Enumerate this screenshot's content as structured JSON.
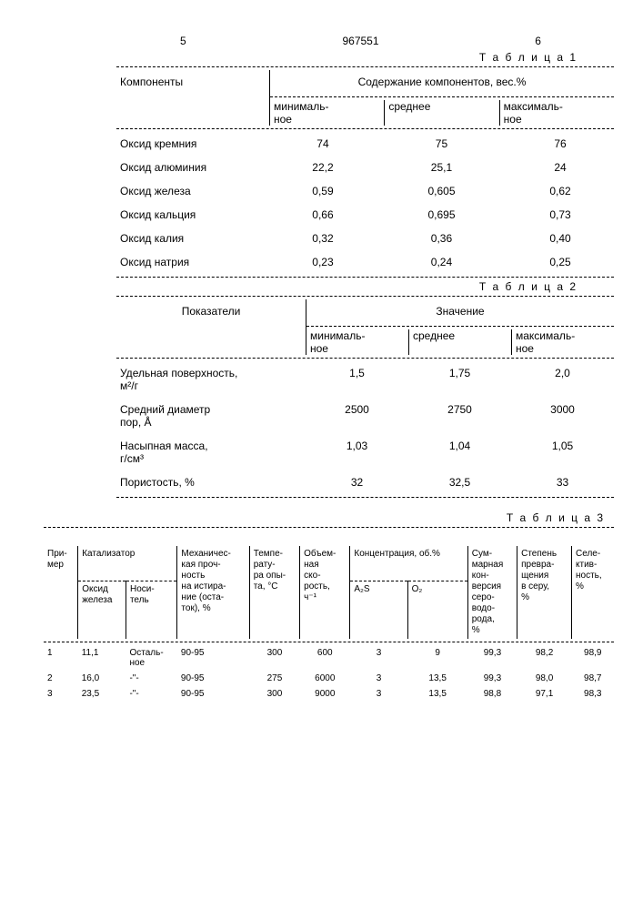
{
  "header": {
    "page_left": "5",
    "doc_number": "967551",
    "page_right": "6"
  },
  "table1": {
    "caption": "Т а б л и ц а  1",
    "col_header_left": "Компоненты",
    "col_header_right": "Содержание компонентов, вес.%",
    "sub_headers": [
      "минималь-\nное",
      "среднее",
      "максималь-\nное"
    ],
    "rows": [
      {
        "label": "Оксид кремния",
        "min": "74",
        "avg": "75",
        "max": "76"
      },
      {
        "label": "Оксид алюминия",
        "min": "22,2",
        "avg": "25,1",
        "max": "24"
      },
      {
        "label": "Оксид железа",
        "min": "0,59",
        "avg": "0,605",
        "max": "0,62"
      },
      {
        "label": "Оксид кальция",
        "min": "0,66",
        "avg": "0,695",
        "max": "0,73"
      },
      {
        "label": "Оксид калия",
        "min": "0,32",
        "avg": "0,36",
        "max": "0,40"
      },
      {
        "label": "Оксид натрия",
        "min": "0,23",
        "avg": "0,24",
        "max": "0,25"
      }
    ]
  },
  "table2": {
    "caption": "Т а б л и ц а  2",
    "col_header_left": "Показатели",
    "col_header_right": "Значение",
    "sub_headers": [
      "минималь-\nное",
      "среднее",
      "максималь-\nное"
    ],
    "rows": [
      {
        "label": "Удельная поверхность,\nм²/г",
        "min": "1,5",
        "avg": "1,75",
        "max": "2,0"
      },
      {
        "label": "Средний диаметр\nпор, Å",
        "min": "2500",
        "avg": "2750",
        "max": "3000"
      },
      {
        "label": "Насыпная масса,\nг/см³",
        "min": "1,03",
        "avg": "1,04",
        "max": "1,05"
      },
      {
        "label": "Пористость, %",
        "min": "32",
        "avg": "32,5",
        "max": "33"
      }
    ]
  },
  "table3": {
    "caption": "Т а б л и ц а  3",
    "headers": {
      "c1": "При-\nмер",
      "c2": "Катализатор",
      "c2a": "Оксид\nжелеза",
      "c2b": "Носи-\nтель",
      "c3": "Механичес-\nкая проч-\nность\nна истира-\nние (оста-\nток), %",
      "c4": "Темпе-\nрату-\nра опы-\nта, °С",
      "c5": "Объем-\nная\nско-\nрость,\nч⁻¹",
      "c6": "Концентрация,\nоб.%",
      "c6a": "A₂S",
      "c6b": "O₂",
      "c7": "Сум-\nмарная\nкон-\nверсия\nсеро-\nводо-\nрода,\n%",
      "c8": "Степень\nпревра-\nщения\nв серу,\n%",
      "c9": "Селе-\nктив-\nность,\n%"
    },
    "rows": [
      {
        "n": "1",
        "feox": "11,1",
        "carrier": "Осталь-\nное",
        "mech": "90-95",
        "temp": "300",
        "vol": "600",
        "a2s": "3",
        "o2": "9",
        "conv": "99,3",
        "deg": "98,2",
        "sel": "98,9"
      },
      {
        "n": "2",
        "feox": "16,0",
        "carrier": "-\"-",
        "mech": "90-95",
        "temp": "275",
        "vol": "6000",
        "a2s": "3",
        "o2": "13,5",
        "conv": "99,3",
        "deg": "98,0",
        "sel": "98,7"
      },
      {
        "n": "3",
        "feox": "23,5",
        "carrier": "-\"-",
        "mech": "90-95",
        "temp": "300",
        "vol": "9000",
        "a2s": "3",
        "o2": "13,5",
        "conv": "98,8",
        "deg": "97,1",
        "sel": "98,3"
      }
    ]
  }
}
